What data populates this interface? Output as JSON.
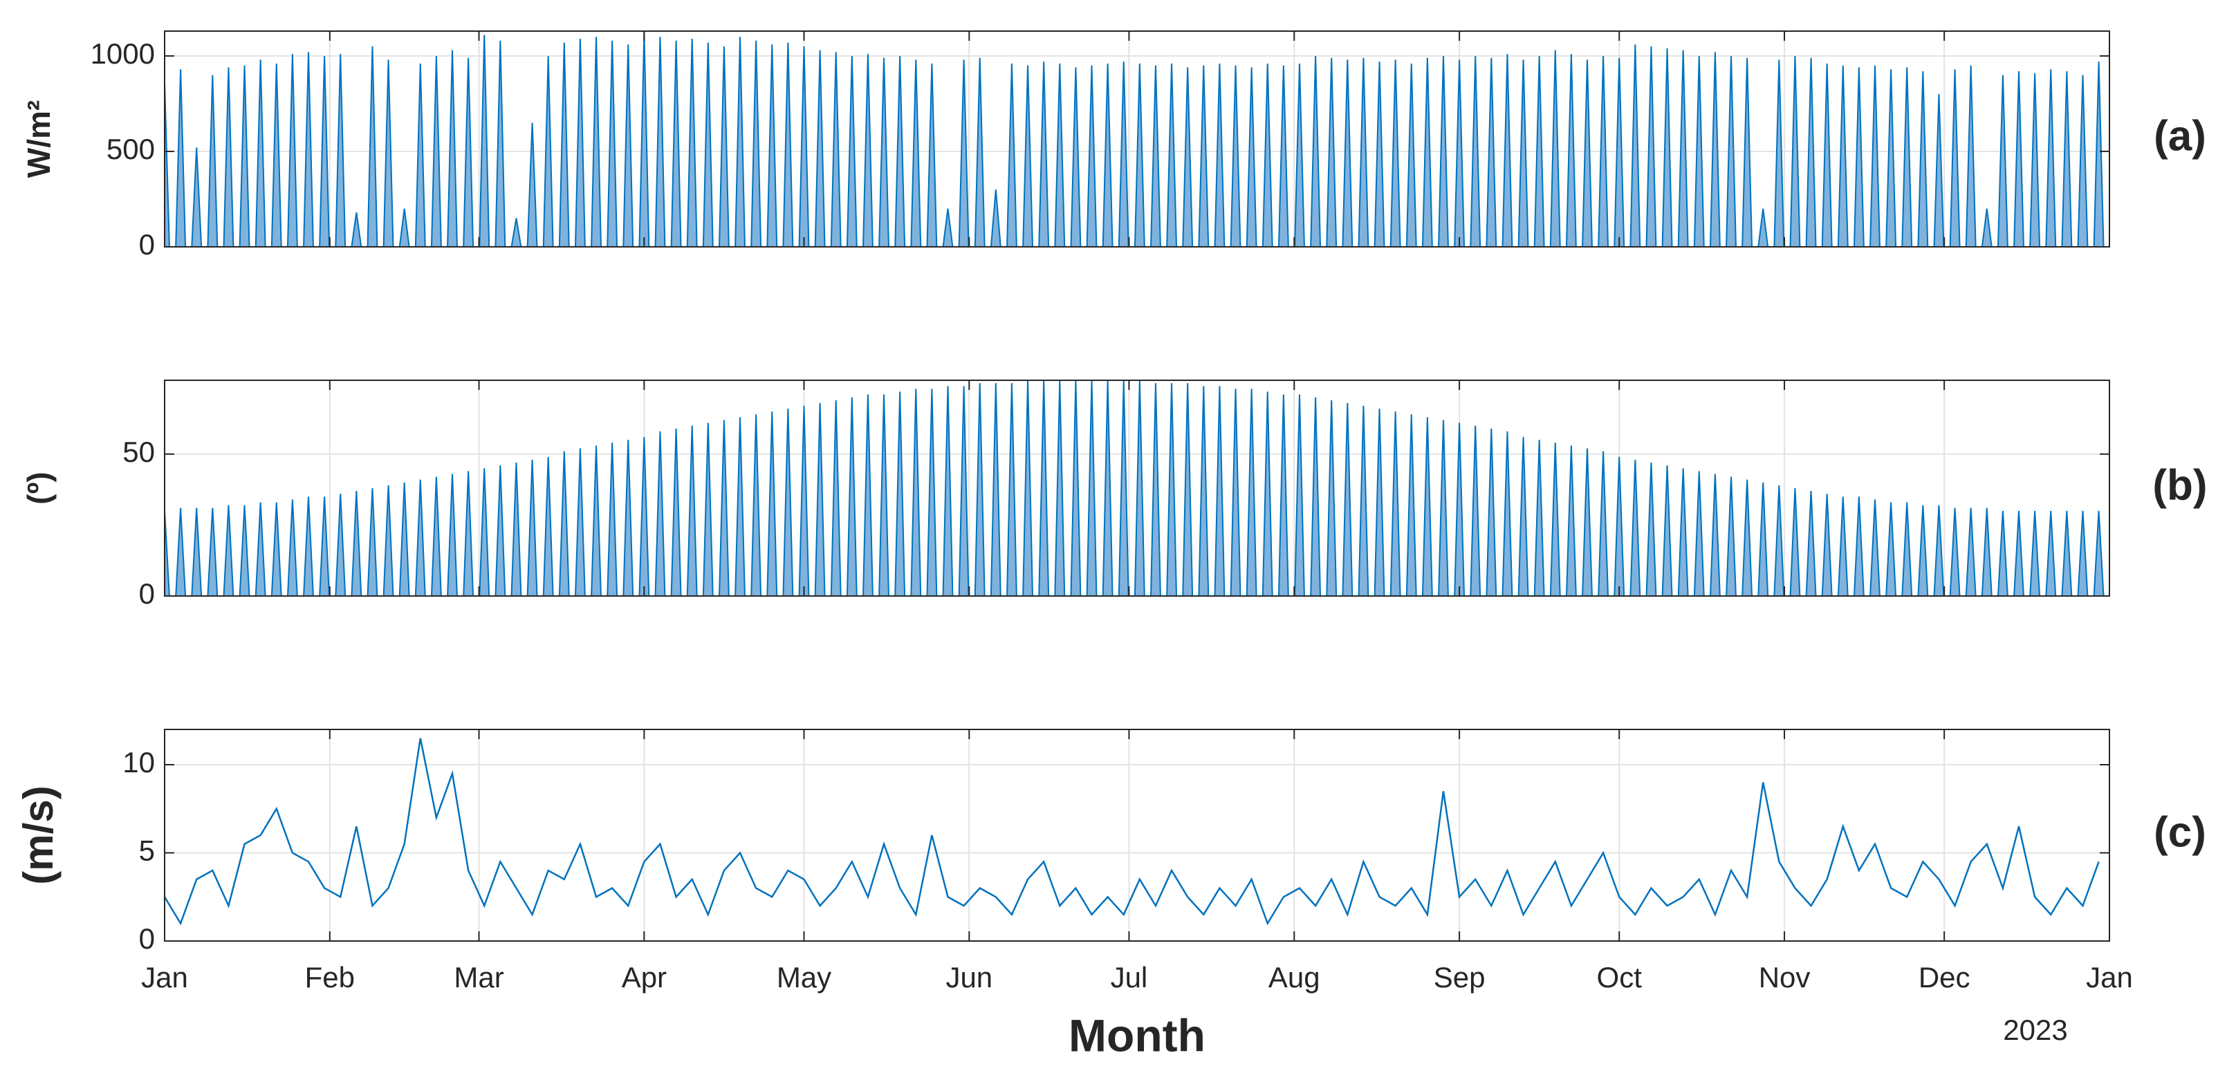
{
  "chart_data": [
    {
      "type": "spike",
      "ylabel": "W/m²",
      "panel_label": "(a)",
      "color": "#0072bd",
      "fill": "#7fb2dd",
      "grid": true,
      "x": [
        0,
        3,
        6,
        9,
        12,
        15,
        18,
        21,
        24,
        27,
        30,
        33,
        36,
        39,
        42,
        45,
        48,
        51,
        54,
        57,
        60,
        63,
        66,
        69,
        72,
        75,
        78,
        81,
        84,
        87,
        90,
        93,
        96,
        99,
        102,
        105,
        108,
        111,
        114,
        117,
        120,
        123,
        126,
        129,
        132,
        135,
        138,
        141,
        144,
        147,
        150,
        153,
        156,
        159,
        162,
        165,
        168,
        171,
        174,
        177,
        180,
        183,
        186,
        189,
        192,
        195,
        198,
        201,
        204,
        207,
        210,
        213,
        216,
        219,
        222,
        225,
        228,
        231,
        234,
        237,
        240,
        243,
        246,
        249,
        252,
        255,
        258,
        261,
        264,
        267,
        270,
        273,
        276,
        279,
        282,
        285,
        288,
        291,
        294,
        297,
        300,
        303,
        306,
        309,
        312,
        315,
        318,
        321,
        324,
        327,
        330,
        333,
        336,
        339,
        342,
        345,
        348,
        351,
        354,
        357,
        360,
        363
      ],
      "values": [
        860,
        930,
        520,
        900,
        940,
        950,
        980,
        960,
        1010,
        1020,
        1000,
        1010,
        180,
        1050,
        980,
        200,
        960,
        1000,
        1030,
        990,
        1110,
        1080,
        150,
        650,
        1000,
        1070,
        1090,
        1100,
        1080,
        1060,
        1120,
        1100,
        1080,
        1090,
        1070,
        1050,
        1100,
        1080,
        1060,
        1070,
        1050,
        1030,
        1020,
        1000,
        1010,
        990,
        1000,
        980,
        960,
        200,
        980,
        990,
        300,
        960,
        950,
        970,
        960,
        940,
        950,
        960,
        970,
        960,
        950,
        960,
        940,
        950,
        960,
        950,
        940,
        960,
        950,
        960,
        1000,
        990,
        980,
        990,
        970,
        980,
        960,
        990,
        1000,
        980,
        1000,
        990,
        1010,
        980,
        1000,
        1030,
        1010,
        980,
        1000,
        990,
        1060,
        1050,
        1040,
        1030,
        1000,
        1020,
        1000,
        990,
        200,
        980,
        1000,
        990,
        960,
        950,
        940,
        950,
        930,
        940,
        920,
        800,
        930,
        950,
        200,
        900,
        920,
        910,
        930,
        920,
        900,
        970
      ],
      "xlim": [
        0,
        365
      ],
      "xticks": [
        0,
        31,
        59,
        90,
        120,
        151,
        181,
        212,
        243,
        273,
        304,
        334,
        365
      ],
      "ylim": [
        0,
        1130
      ],
      "yticks": [
        0,
        500,
        1000
      ]
    },
    {
      "type": "spike",
      "ylabel": "(º)",
      "panel_label": "(b)",
      "color": "#0072bd",
      "fill": "#7fb2dd",
      "grid": true,
      "x": [
        0,
        3,
        6,
        9,
        12,
        15,
        18,
        21,
        24,
        27,
        30,
        33,
        36,
        39,
        42,
        45,
        48,
        51,
        54,
        57,
        60,
        63,
        66,
        69,
        72,
        75,
        78,
        81,
        84,
        87,
        90,
        93,
        96,
        99,
        102,
        105,
        108,
        111,
        114,
        117,
        120,
        123,
        126,
        129,
        132,
        135,
        138,
        141,
        144,
        147,
        150,
        153,
        156,
        159,
        162,
        165,
        168,
        171,
        174,
        177,
        180,
        183,
        186,
        189,
        192,
        195,
        198,
        201,
        204,
        207,
        210,
        213,
        216,
        219,
        222,
        225,
        228,
        231,
        234,
        237,
        240,
        243,
        246,
        249,
        252,
        255,
        258,
        261,
        264,
        267,
        270,
        273,
        276,
        279,
        282,
        285,
        288,
        291,
        294,
        297,
        300,
        303,
        306,
        309,
        312,
        315,
        318,
        321,
        324,
        327,
        330,
        333,
        336,
        339,
        342,
        345,
        348,
        351,
        354,
        357,
        360,
        363
      ],
      "values": [
        30,
        31,
        31,
        31,
        32,
        32,
        33,
        33,
        34,
        35,
        35,
        36,
        37,
        38,
        39,
        40,
        41,
        42,
        43,
        44,
        45,
        46,
        47,
        48,
        49,
        51,
        52,
        53,
        54,
        55,
        56,
        58,
        59,
        60,
        61,
        62,
        63,
        64,
        65,
        66,
        67,
        68,
        69,
        70,
        71,
        71,
        72,
        73,
        73,
        74,
        74,
        75,
        75,
        75,
        76,
        76,
        76,
        76,
        76,
        76,
        76,
        76,
        75,
        75,
        75,
        74,
        74,
        73,
        73,
        72,
        71,
        71,
        70,
        69,
        68,
        67,
        66,
        65,
        64,
        63,
        62,
        61,
        60,
        59,
        58,
        56,
        55,
        54,
        53,
        52,
        51,
        49,
        48,
        47,
        46,
        45,
        44,
        43,
        42,
        41,
        40,
        39,
        38,
        37,
        36,
        35,
        35,
        34,
        33,
        33,
        32,
        32,
        31,
        31,
        31,
        30,
        30,
        30,
        30,
        30,
        30,
        30
      ],
      "xlim": [
        0,
        365
      ],
      "xticks": [
        0,
        31,
        59,
        90,
        120,
        151,
        181,
        212,
        243,
        273,
        304,
        334,
        365
      ],
      "ylim": [
        0,
        76
      ],
      "yticks": [
        0,
        50
      ]
    },
    {
      "type": "line",
      "ylabel": "(m/s)",
      "panel_label": "(c)",
      "xlabel": "Month",
      "year_label": "2023",
      "color": "#0072bd",
      "grid": true,
      "x": [
        0,
        3,
        6,
        9,
        12,
        15,
        18,
        21,
        24,
        27,
        30,
        33,
        36,
        39,
        42,
        45,
        48,
        51,
        54,
        57,
        60,
        63,
        66,
        69,
        72,
        75,
        78,
        81,
        84,
        87,
        90,
        93,
        96,
        99,
        102,
        105,
        108,
        111,
        114,
        117,
        120,
        123,
        126,
        129,
        132,
        135,
        138,
        141,
        144,
        147,
        150,
        153,
        156,
        159,
        162,
        165,
        168,
        171,
        174,
        177,
        180,
        183,
        186,
        189,
        192,
        195,
        198,
        201,
        204,
        207,
        210,
        213,
        216,
        219,
        222,
        225,
        228,
        231,
        234,
        237,
        240,
        243,
        246,
        249,
        252,
        255,
        258,
        261,
        264,
        267,
        270,
        273,
        276,
        279,
        282,
        285,
        288,
        291,
        294,
        297,
        300,
        303,
        306,
        309,
        312,
        315,
        318,
        321,
        324,
        327,
        330,
        333,
        336,
        339,
        342,
        345,
        348,
        351,
        354,
        357,
        360,
        363
      ],
      "values": [
        2.5,
        1.0,
        3.5,
        4.0,
        2.0,
        5.5,
        6.0,
        7.5,
        5.0,
        4.5,
        3.0,
        2.5,
        6.5,
        2.0,
        3.0,
        5.5,
        11.5,
        7.0,
        9.5,
        4.0,
        2.0,
        4.5,
        3.0,
        1.5,
        4.0,
        3.5,
        5.5,
        2.5,
        3.0,
        2.0,
        4.5,
        5.5,
        2.5,
        3.5,
        1.5,
        4.0,
        5.0,
        3.0,
        2.5,
        4.0,
        3.5,
        2.0,
        3.0,
        4.5,
        2.5,
        5.5,
        3.0,
        1.5,
        6.0,
        2.5,
        2.0,
        3.0,
        2.5,
        1.5,
        3.5,
        4.5,
        2.0,
        3.0,
        1.5,
        2.5,
        1.5,
        3.5,
        2.0,
        4.0,
        2.5,
        1.5,
        3.0,
        2.0,
        3.5,
        1.0,
        2.5,
        3.0,
        2.0,
        3.5,
        1.5,
        4.5,
        2.5,
        2.0,
        3.0,
        1.5,
        8.5,
        2.5,
        3.5,
        2.0,
        4.0,
        1.5,
        3.0,
        4.5,
        2.0,
        3.5,
        5.0,
        2.5,
        1.5,
        3.0,
        2.0,
        2.5,
        3.5,
        1.5,
        4.0,
        2.5,
        9.0,
        4.5,
        3.0,
        2.0,
        3.5,
        6.5,
        4.0,
        5.5,
        3.0,
        2.5,
        4.5,
        3.5,
        2.0,
        4.5,
        5.5,
        3.0,
        6.5,
        2.5,
        1.5,
        3.0,
        2.0,
        4.5
      ],
      "xlim": [
        0,
        365
      ],
      "xticks": [
        {
          "value": 0,
          "label": "Jan"
        },
        {
          "value": 31,
          "label": "Feb"
        },
        {
          "value": 59,
          "label": "Mar"
        },
        {
          "value": 90,
          "label": "Apr"
        },
        {
          "value": 120,
          "label": "May"
        },
        {
          "value": 151,
          "label": "Jun"
        },
        {
          "value": 181,
          "label": "Jul"
        },
        {
          "value": 212,
          "label": "Aug"
        },
        {
          "value": 243,
          "label": "Sep"
        },
        {
          "value": 273,
          "label": "Oct"
        },
        {
          "value": 304,
          "label": "Nov"
        },
        {
          "value": 334,
          "label": "Dec"
        },
        {
          "value": 365,
          "label": "Jan"
        }
      ],
      "ylim": [
        0,
        12
      ],
      "yticks": [
        0,
        5,
        10
      ]
    }
  ]
}
